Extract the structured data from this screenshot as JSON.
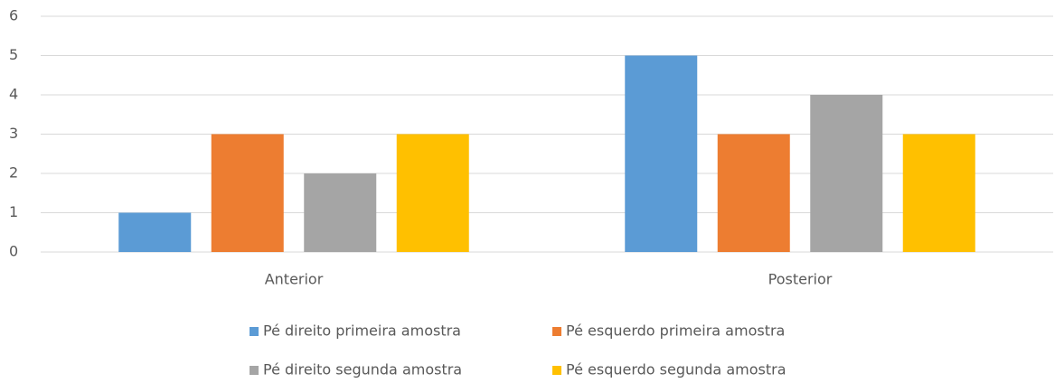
{
  "chart_data": {
    "type": "bar",
    "categories": [
      "Anterior",
      "Posterior"
    ],
    "series": [
      {
        "name": "Pé direito primeira amostra",
        "color": "#5b9bd5",
        "values": [
          1,
          5
        ]
      },
      {
        "name": "Pé esquerdo primeira amostra",
        "color": "#ed7d31",
        "values": [
          3,
          3
        ]
      },
      {
        "name": "Pé direito segunda amostra",
        "color": "#a5a5a5",
        "values": [
          2,
          4
        ]
      },
      {
        "name": "Pé esquerdo segunda amostra",
        "color": "#ffc000",
        "values": [
          3,
          3
        ]
      }
    ],
    "ylim": [
      0,
      6
    ],
    "yticks": [
      0,
      1,
      2,
      3,
      4,
      5,
      6
    ],
    "grid": true,
    "legend": "bottom"
  }
}
